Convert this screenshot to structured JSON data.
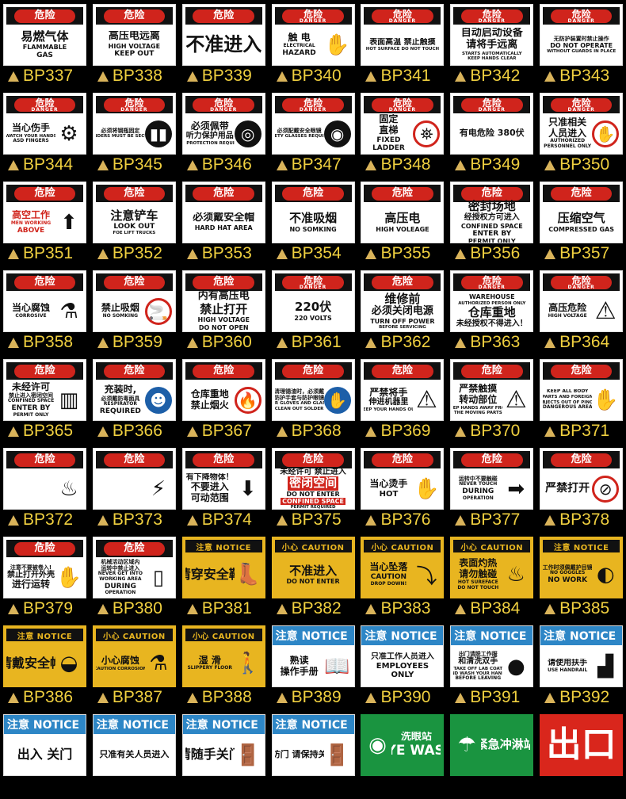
{
  "colors": {
    "danger_red": "#d0241c",
    "notice_yellow": "#e8b520",
    "notice_blue": "#2d86c6",
    "safe_green": "#1a9440",
    "code_text": "#f0d040",
    "triangle": "#d9b35a"
  },
  "signs": [
    {
      "code": "BP337",
      "type": "danger",
      "hdr": "危险",
      "lines": [
        "易燃气体",
        "FLAMMABLE",
        "GAS"
      ]
    },
    {
      "code": "BP338",
      "type": "danger",
      "hdr": "危险",
      "lines": [
        "高压电远离",
        "HIGH VOLTAGE",
        "KEEP OUT"
      ]
    },
    {
      "code": "BP339",
      "type": "danger",
      "hdr": "危险",
      "lines": [
        "不准进入"
      ]
    },
    {
      "code": "BP340",
      "type": "danger",
      "hdr": "危险",
      "hdr_en": "DANGER",
      "lines": [
        "触 电",
        "ELECTRICAL",
        "HAZARD"
      ],
      "icon": "electric-hand"
    },
    {
      "code": "BP341",
      "type": "danger",
      "hdr": "危险",
      "hdr_en": "DANGER",
      "lines": [
        "表面高温 禁止触摸",
        "HOT SURFACE DO NOT TOUCH"
      ]
    },
    {
      "code": "BP342",
      "type": "danger",
      "hdr": "危险",
      "hdr_en": "DANGER",
      "lines": [
        "自动启动设备",
        "请将手远离",
        "STARTS AUTOMATICALLY",
        "KEEP HANDS CLEAR"
      ]
    },
    {
      "code": "BP343",
      "type": "danger",
      "hdr": "危险",
      "hdr_en": "DANGER",
      "lines": [
        "无防护装置时禁止操作",
        "DO NOT OPERATE",
        "WITHOUT GUARDS IN PLACE"
      ]
    },
    {
      "code": "BP344",
      "type": "danger",
      "hdr": "危险",
      "hdr_en": "DANGER",
      "lines": [
        "当心伤手",
        "WATCH YOUR HANDS",
        "ASD FINGERS"
      ],
      "icon": "gears"
    },
    {
      "code": "BP345",
      "type": "danger",
      "hdr": "危险",
      "hdr_en": "DANGER",
      "lines": [
        "必须将钢瓶固定",
        "CYLINDERS MUST BE SECURED"
      ],
      "icon": "gas-cylinders"
    },
    {
      "code": "BP346",
      "type": "danger",
      "hdr": "危险",
      "hdr_en": "DANGER",
      "lines": [
        "必须佩带",
        "听力保护用品",
        "EAR PROTECTION REQUIRED"
      ],
      "icon": "ear-protection"
    },
    {
      "code": "BP347",
      "type": "danger",
      "hdr": "危险",
      "hdr_en": "DANGER",
      "lines": [
        "必须配戴安全眼镜",
        "SAFETY GLASSES REQUIRED"
      ],
      "icon": "safety-glasses"
    },
    {
      "code": "BP348",
      "type": "danger",
      "hdr": "危险",
      "hdr_en": "DANGER",
      "lines": [
        "固定",
        "直梯",
        "FIXED",
        "LADDER"
      ],
      "icon": "no-climbing"
    },
    {
      "code": "BP349",
      "type": "danger",
      "hdr": "危险",
      "hdr_en": "DANGER",
      "lines": [
        "有电危险 380伏"
      ]
    },
    {
      "code": "BP350",
      "type": "danger",
      "hdr": "危险",
      "hdr_en": "DANGER",
      "lines": [
        "只准相关",
        "人员进入",
        "AUTHORIZED",
        "PERSONNEL ONLY"
      ],
      "icon": "stop-hand"
    },
    {
      "code": "BP351",
      "type": "danger",
      "hdr": "危险",
      "lines": [
        "高空工作",
        "MEN WORKING",
        "ABOVE"
      ],
      "icon": "up-arrow"
    },
    {
      "code": "BP352",
      "type": "danger",
      "hdr": "危险",
      "lines": [
        "注意铲车",
        "LOOK OUT",
        "FOE LIFT TRUCKS"
      ]
    },
    {
      "code": "BP353",
      "type": "danger",
      "hdr": "危险",
      "lines": [
        "必须戴安全帽",
        "HARD HAT AREA"
      ]
    },
    {
      "code": "BP354",
      "type": "danger",
      "hdr": "危险",
      "lines": [
        "不准吸烟",
        "NO SOMKING"
      ]
    },
    {
      "code": "BP355",
      "type": "danger",
      "hdr": "危险",
      "lines": [
        "高压电",
        "HIGH VOLEAGE"
      ]
    },
    {
      "code": "BP356",
      "type": "danger",
      "hdr": "危险",
      "lines": [
        "密封场地",
        "经授权方可进入",
        "CONFINED SPACE",
        "ENTER BY",
        "PERMIT ONLY"
      ]
    },
    {
      "code": "BP357",
      "type": "danger",
      "hdr": "危险",
      "lines": [
        "压缩空气",
        "COMPRESSED GAS"
      ]
    },
    {
      "code": "BP358",
      "type": "danger",
      "hdr": "危险",
      "lines": [
        "当心腐蚀",
        "CORROSIVE"
      ],
      "icon": "corrosive"
    },
    {
      "code": "BP359",
      "type": "danger",
      "hdr": "危险",
      "lines": [
        "禁止吸烟",
        "NO SOMKING"
      ],
      "icon": "no-smoking"
    },
    {
      "code": "BP360",
      "type": "danger",
      "hdr": "危险",
      "lines": [
        "内有高压电",
        "禁止打开",
        "HIGH VOLTAGE",
        "DO NOT OPEN"
      ]
    },
    {
      "code": "BP361",
      "type": "danger",
      "hdr": "危险",
      "hdr_en": "DANGER",
      "lines": [
        "220伏",
        "220 VOLTS"
      ]
    },
    {
      "code": "BP362",
      "type": "danger",
      "hdr": "危险",
      "lines": [
        "维修前",
        "必须关闭电源",
        "TURN OFF POWER",
        "BEFORE SERVICING"
      ]
    },
    {
      "code": "BP363",
      "type": "danger",
      "hdr": "危险",
      "hdr_en": "DANGER",
      "lines": [
        "WAREHOUSE",
        "AUTHORIZED PERSON ONLY",
        "仓库重地",
        "未经授权不得进入！"
      ]
    },
    {
      "code": "BP364",
      "type": "danger",
      "hdr": "危险",
      "hdr_en": "DANGER",
      "lines": [
        "高压危险",
        "HIGH VOLTAGE"
      ],
      "icon": "high-voltage-triangle"
    },
    {
      "code": "BP365",
      "type": "danger",
      "hdr": "危险",
      "lines": [
        "未经许可",
        "禁止进入密闭空间",
        "CONFINED SPACE",
        "ENTER BY",
        "PERMIT ONLY"
      ],
      "icon": "confined-space"
    },
    {
      "code": "BP366",
      "type": "danger",
      "hdr": "危险",
      "lines": [
        "充装时,",
        "必须戴防毒面具",
        "RESPIRATOR",
        "REQUIRED"
      ],
      "icon": "respirator"
    },
    {
      "code": "BP367",
      "type": "danger",
      "hdr": "危险",
      "lines": [
        "仓库重地",
        "禁止烟火"
      ],
      "icon": "no-fire"
    },
    {
      "code": "BP368",
      "type": "danger",
      "hdr": "危险",
      "lines": [
        "清理锡渣时，必须戴",
        "防护手套与防护眼镜",
        "WEAR GLOVES AND GLASSES",
        "WHEN CLEAN OUT SOLDER OXIDE"
      ],
      "icon": "gloves-goggles"
    },
    {
      "code": "BP369",
      "type": "danger",
      "hdr": "危险",
      "lines": [
        "严禁将手",
        "伸进机器里",
        "KEEP YOUR HANDS OUT"
      ],
      "icon": "hand-crush-triangle"
    },
    {
      "code": "BP370",
      "type": "danger",
      "hdr": "危险",
      "lines": [
        "严禁触摸",
        "转动部位",
        "KEEP HANDS AWAY FROM",
        "THE MOVING PARTS"
      ],
      "icon": "moving-parts-triangle"
    },
    {
      "code": "BP371",
      "type": "danger",
      "hdr": "危险",
      "lines": [
        "KEEP ALL BODY",
        "PARTS AND FOREIGN",
        "OBJECTS OUT OF PINCH",
        "DANGEROUS AREA"
      ],
      "icon": "pinch-hand"
    },
    {
      "code": "BP372",
      "type": "danger",
      "hdr": "危险",
      "lines": [],
      "icon": "burn-hand"
    },
    {
      "code": "BP373",
      "type": "danger",
      "hdr": "危险",
      "lines": [],
      "icon": "electrocution"
    },
    {
      "code": "BP374",
      "type": "danger",
      "hdr": "危险",
      "lines": [
        "有下降物体！",
        "不要进入",
        "可动范围"
      ],
      "icon": "falling-object"
    },
    {
      "code": "BP375",
      "type": "danger",
      "hdr": "危险",
      "lines": [
        "未经许可 禁止进入",
        "密闭空间",
        "DO NOT ENTER",
        "CONFINED SPACE",
        "PERMIT REQUIRED"
      ]
    },
    {
      "code": "BP376",
      "type": "danger",
      "hdr": "危险",
      "lines": [
        "当心烫手",
        "HOT"
      ],
      "icon": "hot-hand"
    },
    {
      "code": "BP377",
      "type": "danger",
      "hdr": "危险",
      "lines": [
        "运转中不要触碰",
        "NEVER TOUCH",
        "DURING",
        "OPERATION"
      ],
      "icon": "hand-arrow"
    },
    {
      "code": "BP378",
      "type": "danger",
      "hdr": "危险",
      "lines": [
        "严禁打开"
      ],
      "icon": "no-open"
    },
    {
      "code": "BP379",
      "type": "danger",
      "hdr": "危险",
      "lines": [
        "注意不要被卷入!",
        "禁止打开外壳",
        "进行运转"
      ],
      "icon": "roller-hand"
    },
    {
      "code": "BP380",
      "type": "danger",
      "hdr": "危险",
      "lines": [
        "机械活动区域内",
        "运转中禁止进入",
        "NEVER GET INTO",
        "WORKING AREA",
        "DURING",
        "OPERATION"
      ],
      "icon": "machine-person"
    },
    {
      "code": "BP381",
      "type": "notice-y",
      "hdr": "注意  NOTICE",
      "lines": [
        "请穿安全鞋"
      ],
      "icon": "safety-boot"
    },
    {
      "code": "BP382",
      "type": "notice-y",
      "hdr": "小心  CAUTION",
      "lines": [
        "不准进入",
        "DO NOT ENTER"
      ]
    },
    {
      "code": "BP383",
      "type": "notice-y",
      "hdr": "小心  CAUTION",
      "lines": [
        "当心坠落",
        "CAUTION",
        "DROP DOWN!"
      ],
      "icon": "falling-person"
    },
    {
      "code": "BP384",
      "type": "notice-y",
      "hdr": "小心  CAUTION",
      "lines": [
        "表面灼热",
        "请勿触碰",
        "HOT SUREFACE",
        "DO NOT TOUCH"
      ],
      "icon": "hot-surface"
    },
    {
      "code": "BP385",
      "type": "notice-y",
      "hdr": "注意  NOTICE",
      "lines": [
        "工作时须佩戴护目镜",
        "NO GOGGLES",
        "NO WORK"
      ],
      "icon": "goggles-head"
    },
    {
      "code": "BP386",
      "type": "notice-y",
      "hdr": "注意  NOTICE",
      "lines": [
        "请戴安全帽"
      ],
      "icon": "hard-hat"
    },
    {
      "code": "BP387",
      "type": "notice-y",
      "hdr": "小心  CAUTION",
      "lines": [
        "小心腐蚀",
        "CAUTION CORROSION"
      ],
      "icon": "corrosive"
    },
    {
      "code": "BP388",
      "type": "notice-y",
      "hdr": "小心  CAUTION",
      "lines": [
        "湿  滑",
        "SLIPPERY FLOOR"
      ],
      "icon": "slipping-person"
    },
    {
      "code": "BP389",
      "type": "notice-b",
      "hdr": "注意 NOTICE",
      "lines": [
        "熟读",
        "操作手册"
      ],
      "icon": "reading-person"
    },
    {
      "code": "BP390",
      "type": "notice-b",
      "hdr": "注意 NOTICE",
      "lines": [
        "只准工作人员进入",
        "EMPLOYEES",
        "ONLY"
      ]
    },
    {
      "code": "BP391",
      "type": "notice-b",
      "hdr": "注意 NOTICE",
      "lines": [
        "出门请脱工作服",
        "和清洗双手",
        "TAKE OFF LAB COAT",
        "AND WASH YOUR HANDS",
        "BEFORE LEAVING"
      ],
      "icon": "lab-coat-wash"
    },
    {
      "code": "BP392",
      "type": "notice-b",
      "hdr": "注意 NOTICE",
      "lines": [
        "请使用扶手",
        "USE HANDRAIL"
      ],
      "icon": "handrail"
    },
    {
      "type": "notice-b",
      "hdr": "注意 NOTICE",
      "lines": [
        "出入 关门"
      ]
    },
    {
      "type": "notice-b",
      "hdr": "注意 NOTICE",
      "lines": [
        "只准有关人员进入"
      ]
    },
    {
      "type": "notice-b",
      "hdr": "注意 NOTICE",
      "lines": [
        "请随手关门"
      ],
      "icon": "door"
    },
    {
      "type": "notice-b",
      "hdr": "注意 NOTICE",
      "lines": [
        "消防门 请保持关闭"
      ],
      "icon": "door"
    },
    {
      "type": "green",
      "lines": [
        "洗眼站",
        "EYE WASH"
      ],
      "icon": "eye-wash"
    },
    {
      "type": "green",
      "lines": [
        "紧急冲淋站"
      ],
      "icon": "shower"
    },
    {
      "type": "red",
      "lines": [
        "出口"
      ]
    }
  ]
}
